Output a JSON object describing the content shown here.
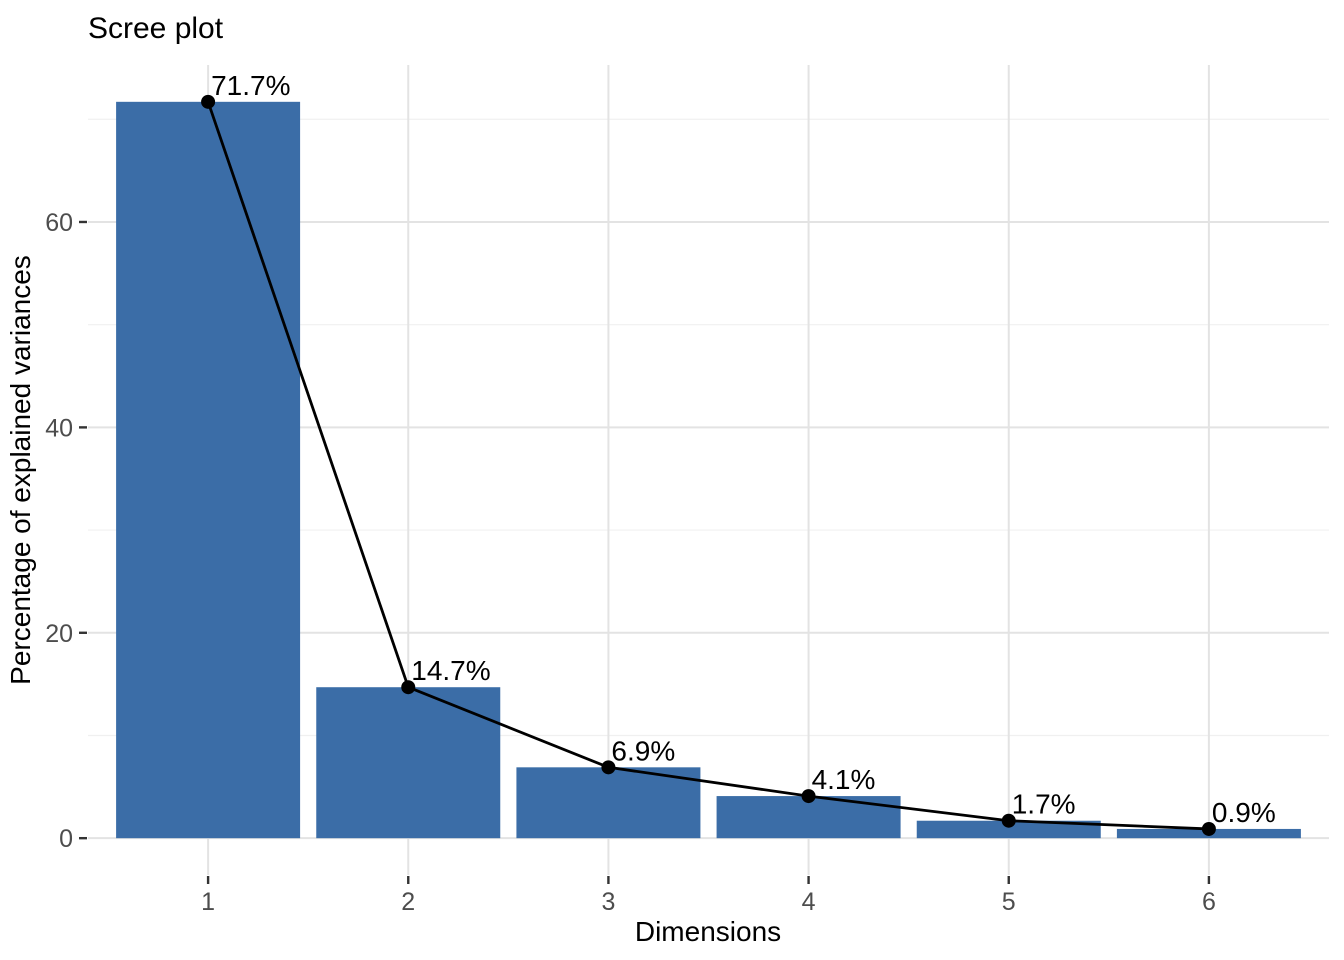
{
  "chart_data": {
    "type": "bar",
    "subtype": "scree-plot-bar-with-line-overlay",
    "title": "Scree plot",
    "xlabel": "Dimensions",
    "ylabel": "Percentage of explained variances",
    "categories": [
      "1",
      "2",
      "3",
      "4",
      "5",
      "6"
    ],
    "values": [
      71.7,
      14.7,
      6.9,
      4.1,
      1.7,
      0.9
    ],
    "point_labels": [
      "71.7%",
      "14.7%",
      "6.9%",
      "4.1%",
      "1.7%",
      "0.9%"
    ],
    "series": [
      {
        "name": "explained-variance-bars",
        "type": "bar",
        "values": [
          71.7,
          14.7,
          6.9,
          4.1,
          1.7,
          0.9
        ]
      },
      {
        "name": "explained-variance-line",
        "type": "line-with-points",
        "values": [
          71.7,
          14.7,
          6.9,
          4.1,
          1.7,
          0.9
        ]
      }
    ],
    "y_axis": {
      "major_ticks": [
        0,
        20,
        40,
        60
      ],
      "minor_gridlines": [
        10,
        30,
        50,
        70
      ],
      "range": [
        -3.585,
        75.285
      ]
    },
    "x_axis": {
      "tick_labels": [
        "1",
        "2",
        "3",
        "4",
        "5",
        "6"
      ]
    },
    "grid": {
      "horizontal": "major+minor",
      "vertical": "major-only",
      "visible": true
    },
    "legend": "none",
    "colors": {
      "bar_fill": "#3B6DA7",
      "line": "#000000",
      "point": "#000000",
      "grid_major": "#E3E3E3",
      "grid_minor": "#F0F0F0",
      "axis_tick": "#333333",
      "tick_label": "#4D4D4D",
      "title": "#000000",
      "background": "#FFFFFF"
    }
  }
}
